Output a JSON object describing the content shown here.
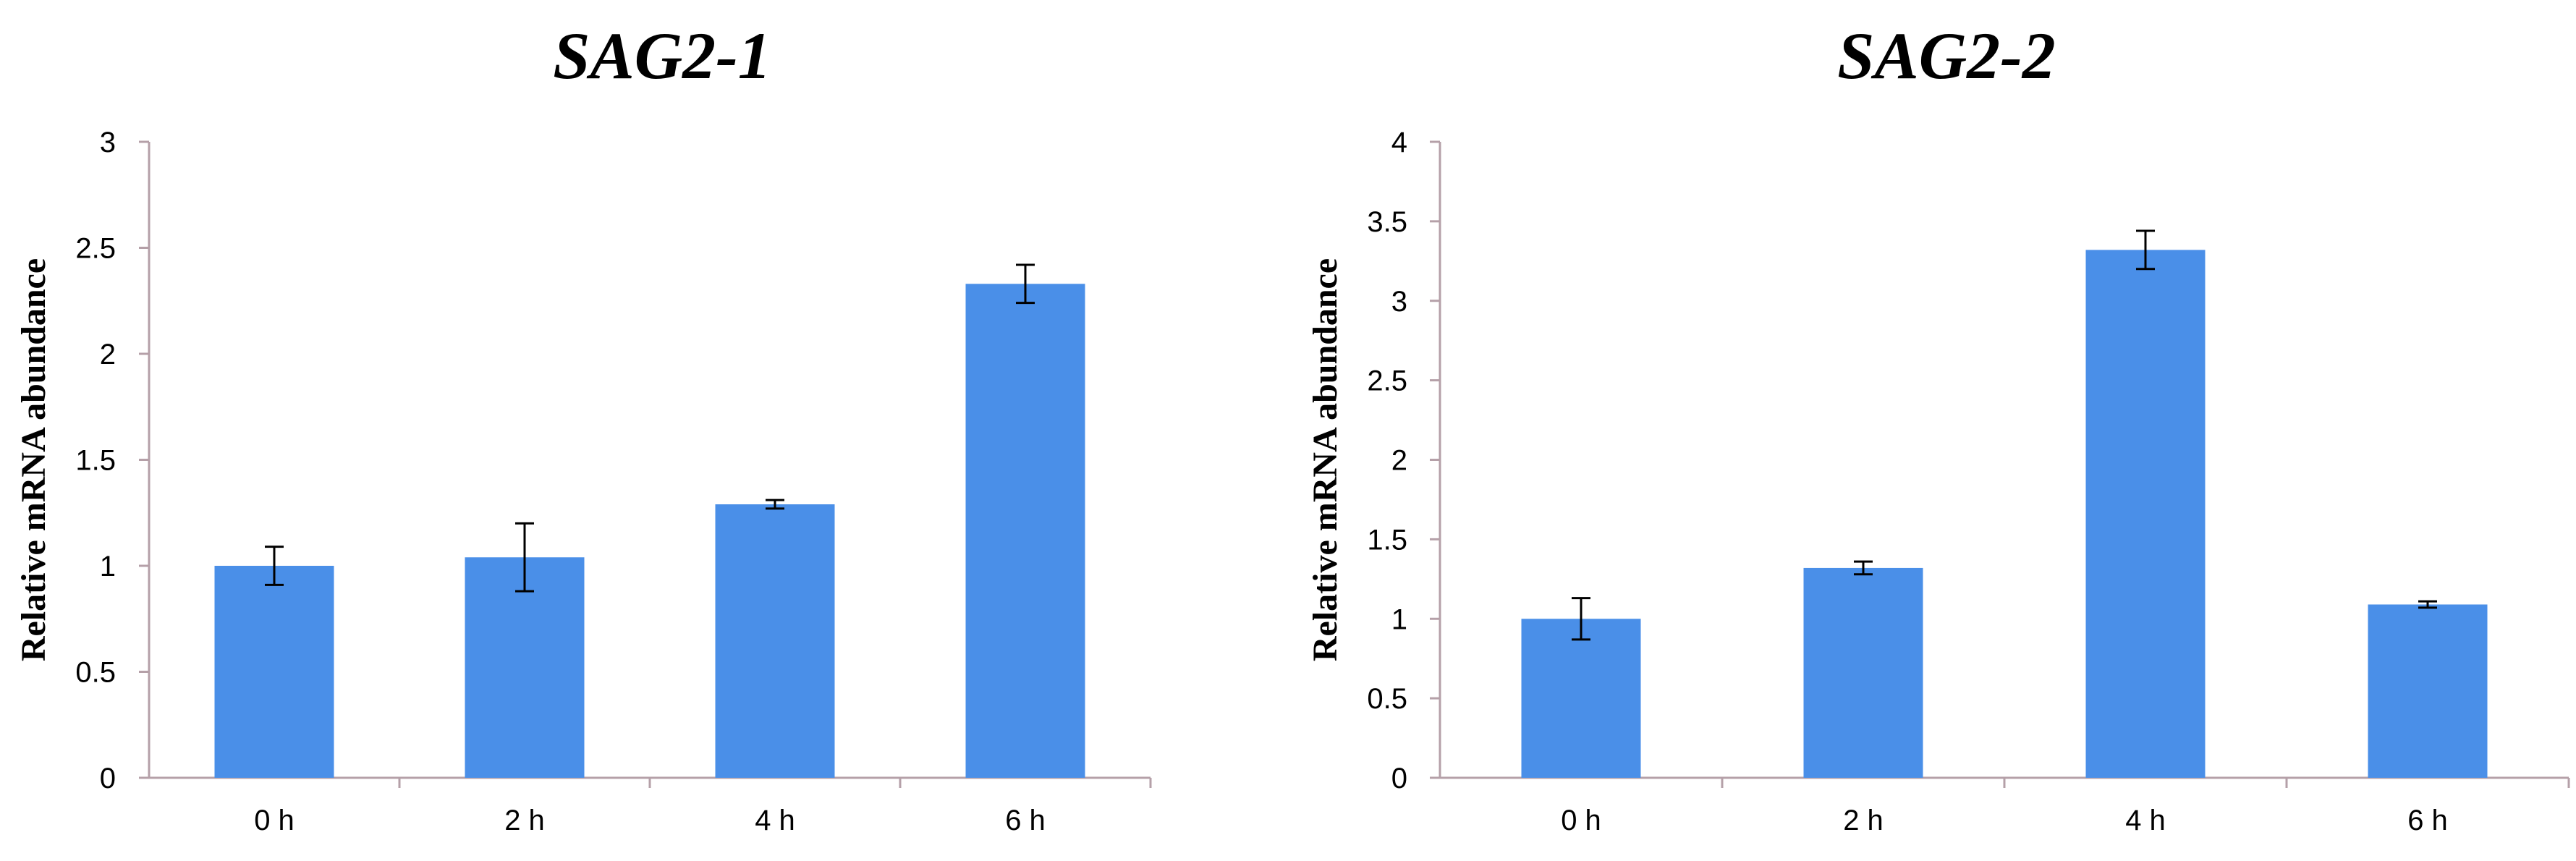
{
  "colors": {
    "bar": "#4a8fe8",
    "axis": "#b5a0a8",
    "errorbar": "#000000"
  },
  "chart_data": [
    {
      "type": "bar",
      "title": "SAG2-1",
      "ylabel": "Relative mRNA abundance",
      "xlabel": "",
      "categories": [
        "0 h",
        "2 h",
        "4 h",
        "6 h"
      ],
      "values": [
        1.0,
        1.04,
        1.29,
        2.33
      ],
      "errors": [
        0.09,
        0.16,
        0.02,
        0.09
      ],
      "ylim": [
        0,
        3
      ],
      "yticks": [
        0,
        0.5,
        1,
        1.5,
        2,
        2.5,
        3
      ],
      "ytick_labels": [
        "0",
        "0.5",
        "1",
        "1.5",
        "2",
        "2.5",
        "3"
      ],
      "grid": false,
      "legend": "none"
    },
    {
      "type": "bar",
      "title": "SAG2-2",
      "ylabel": "Relative mRNA abundance",
      "xlabel": "",
      "categories": [
        "0 h",
        "2 h",
        "4 h",
        "6 h"
      ],
      "values": [
        1.0,
        1.32,
        3.32,
        1.09
      ],
      "errors": [
        0.13,
        0.04,
        0.12,
        0.02
      ],
      "ylim": [
        0,
        4
      ],
      "yticks": [
        0,
        0.5,
        1,
        1.5,
        2,
        2.5,
        3,
        3.5,
        4
      ],
      "ytick_labels": [
        "0",
        "0.5",
        "1",
        "1.5",
        "2",
        "2.5",
        "3",
        "3.5",
        "4"
      ],
      "grid": false,
      "legend": "none"
    }
  ]
}
